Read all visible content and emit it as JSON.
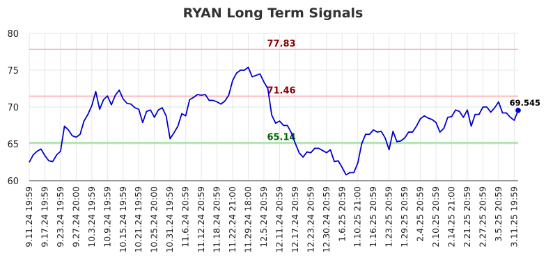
{
  "chart_data": {
    "type": "line",
    "title": "RYAN Long Term Signals",
    "xlabel": "",
    "ylabel": "",
    "ylim": [
      60,
      80
    ],
    "y_ticks": [
      60,
      65,
      70,
      75,
      80
    ],
    "grid": true,
    "legend": "none",
    "x_tick_labels": [
      "9.11.24 19:59",
      "9.17.24 19:59",
      "9.23.24 19:59",
      "9.27.24 20:00",
      "10.3.24 19:59",
      "10.9.24 19:59",
      "10.15.24 19:59",
      "10.21.24 19:59",
      "10.25.24 20:00",
      "10.31.24 19:59",
      "11.6.24 20:59",
      "11.12.24 20:59",
      "11.18.24 20:59",
      "11.22.24 21:00",
      "11.29.24 18:00",
      "12.5.24 20:59",
      "12.11.24 20:59",
      "12.17.24 20:59",
      "12.23.24 20:59",
      "12.30.24 20:59",
      "1.6.25 20:59",
      "1.10.25 21:00",
      "1.16.25 20:59",
      "1.23.25 20:59",
      "1.29.25 20:59",
      "2.4.25 20:59",
      "2.10.25 20:59",
      "2.14.25 21:00",
      "2.21.25 20:59",
      "2.27.25 20:59",
      "3.5.25 20:59",
      "3.11.25 19:59"
    ],
    "x_tick_positions": [
      0,
      4,
      8,
      12,
      16,
      20,
      24,
      28,
      32,
      36,
      40,
      44,
      48,
      52,
      56,
      60,
      64,
      68,
      72,
      76,
      80,
      84,
      88,
      92,
      96,
      100,
      104,
      108,
      112,
      116,
      120,
      124
    ],
    "series": [
      {
        "name": "",
        "color": "#0000cc",
        "values": [
          62.5,
          63.5,
          64.0,
          64.3,
          63.4,
          62.7,
          62.6,
          63.5,
          64.0,
          67.4,
          66.9,
          66.1,
          65.9,
          66.3,
          68.1,
          69.0,
          70.2,
          72.1,
          69.7,
          71.0,
          71.5,
          70.3,
          71.6,
          72.3,
          71.1,
          70.5,
          70.4,
          69.9,
          69.7,
          67.9,
          69.4,
          69.6,
          68.6,
          69.6,
          69.9,
          68.8,
          65.7,
          66.5,
          67.4,
          69.1,
          68.8,
          71.0,
          71.3,
          71.7,
          71.6,
          71.7,
          70.9,
          70.9,
          70.7,
          70.4,
          70.8,
          71.6,
          73.6,
          74.6,
          75.0,
          75.0,
          75.4,
          74.1,
          74.3,
          74.5,
          73.4,
          72.5,
          68.9,
          67.8,
          68.1,
          67.5,
          67.5,
          66.5,
          65.1,
          63.8,
          63.2,
          63.9,
          63.8,
          64.4,
          64.4,
          64.1,
          63.8,
          64.2,
          62.6,
          62.7,
          61.8,
          60.8,
          61.1,
          61.1,
          62.4,
          65.0,
          66.3,
          66.3,
          66.9,
          66.6,
          66.7,
          65.8,
          64.2,
          66.7,
          65.3,
          65.4,
          65.8,
          66.6,
          66.6,
          67.4,
          68.4,
          68.8,
          68.5,
          68.3,
          67.9,
          66.6,
          67.1,
          68.6,
          68.7,
          69.6,
          69.4,
          68.6,
          69.6,
          67.4,
          69.0,
          69.0,
          70.0,
          70.0,
          69.3,
          69.9,
          70.7,
          69.2,
          69.2,
          68.6,
          68.2,
          69.545
        ]
      }
    ],
    "reference_lines": [
      {
        "value": 77.83,
        "label": "77.83",
        "line_color": "#ffbbbb",
        "text_color": "#8b0000"
      },
      {
        "value": 71.46,
        "label": "71.46",
        "line_color": "#ffbbbb",
        "text_color": "#8b0000"
      },
      {
        "value": 65.14,
        "label": "65.14",
        "line_color": "#99dd99",
        "text_color": "#006400"
      }
    ],
    "last_point_label": "69.545"
  }
}
